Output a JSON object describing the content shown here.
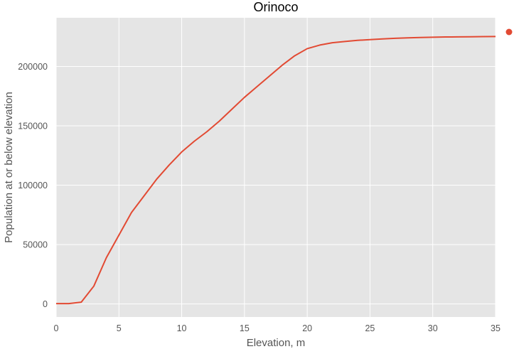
{
  "chart_data": {
    "type": "line",
    "title": "Orinoco",
    "xlabel": "Elevation, m",
    "ylabel": "Population at or below elevation",
    "xlim": [
      0,
      35
    ],
    "ylim": [
      -11000,
      241000
    ],
    "xticks": [
      "0",
      "5",
      "10",
      "15",
      "20",
      "25",
      "30",
      "35"
    ],
    "yticks": [
      "0",
      "50000",
      "100000",
      "150000",
      "200000"
    ],
    "grid": true,
    "legend": "right",
    "colors": {
      "background": "#e5e5e5",
      "grid": "#ffffff",
      "line": "#e24a33"
    },
    "series": [
      {
        "x": [
          0,
          1,
          2,
          3,
          4,
          5,
          6,
          7,
          8,
          9,
          10,
          11,
          12,
          13,
          14,
          15,
          16,
          17,
          18,
          19,
          20,
          21,
          22,
          23,
          24,
          25,
          26,
          27,
          28,
          29,
          30,
          31,
          32,
          33,
          34,
          35
        ],
        "values": [
          300,
          300,
          1500,
          15000,
          39000,
          58000,
          77000,
          91000,
          105000,
          117000,
          128000,
          137000,
          145000,
          154000,
          164000,
          174000,
          183000,
          192000,
          201000,
          209000,
          215000,
          218000,
          220000,
          221000,
          222000,
          222600,
          223200,
          223700,
          224100,
          224400,
          224600,
          224800,
          224900,
          225000,
          225100,
          225200
        ]
      }
    ]
  }
}
